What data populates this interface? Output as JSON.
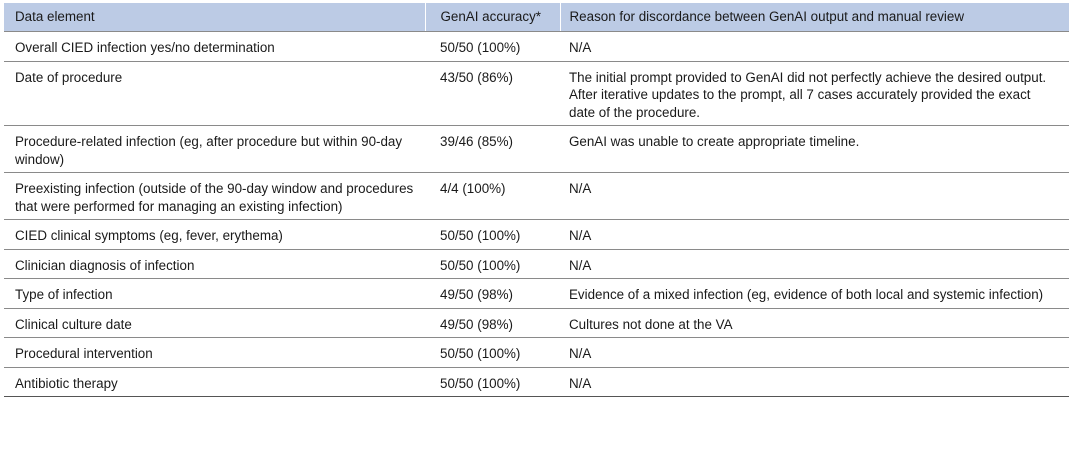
{
  "table": {
    "headers": {
      "data_element": "Data element",
      "accuracy": "GenAI accuracy*",
      "reason": "Reason for discordance between GenAI output and manual review"
    },
    "rows": [
      {
        "element": "Overall CIED infection yes/no determination",
        "accuracy": "50/50 (100%)",
        "reason": "N/A"
      },
      {
        "element": "Date of procedure",
        "accuracy": "43/50 (86%)",
        "reason": "The initial prompt provided to GenAI did not perfectly achieve the desired output. After iterative updates to the prompt, all 7 cases accurately provided the exact date of the procedure."
      },
      {
        "element": "Procedure-related infection (eg, after procedure but within 90-day window)",
        "accuracy": "39/46 (85%)",
        "reason": "GenAI was unable to create appropriate timeline."
      },
      {
        "element": "Preexisting infection (outside of the 90-day window and procedures that were performed for managing an existing infection)",
        "accuracy": "4/4 (100%)",
        "reason": "N/A"
      },
      {
        "element": "CIED clinical symptoms (eg, fever, erythema)",
        "accuracy": "50/50 (100%)",
        "reason": "N/A"
      },
      {
        "element": "Clinician diagnosis of infection",
        "accuracy": "50/50 (100%)",
        "reason": "N/A"
      },
      {
        "element": "Type of infection",
        "accuracy": "49/50 (98%)",
        "reason": "Evidence of a mixed infection (eg, evidence of both local and systemic infection)"
      },
      {
        "element": "Clinical culture date",
        "accuracy": "49/50 (98%)",
        "reason": "Cultures not done at the VA"
      },
      {
        "element": "Procedural intervention",
        "accuracy": "50/50 (100%)",
        "reason": "N/A"
      },
      {
        "element": "Antibiotic therapy",
        "accuracy": "50/50 (100%)",
        "reason": "N/A"
      }
    ]
  },
  "colors": {
    "header_background": "#bccbe5",
    "rule": "#8a8a8a"
  }
}
